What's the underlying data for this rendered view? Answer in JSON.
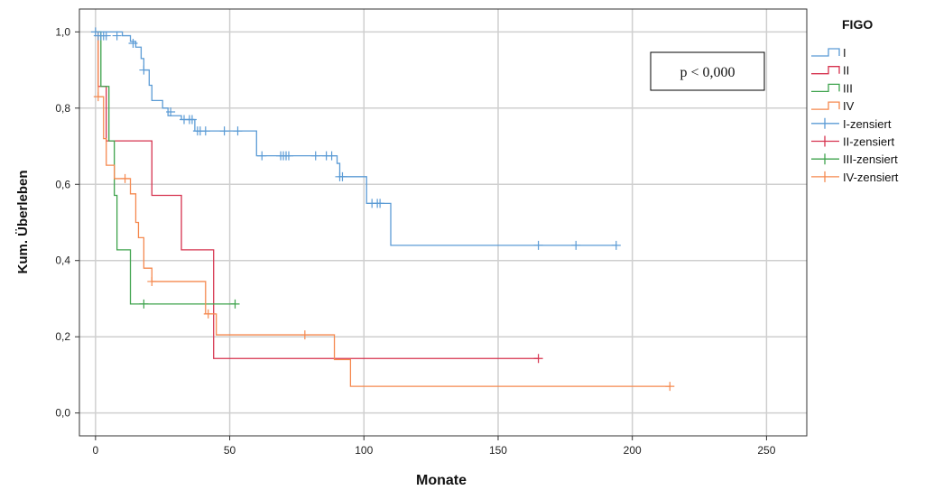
{
  "chart_data": {
    "type": "line",
    "title": "",
    "xlabel": "Monate",
    "ylabel": "Kum. Überleben",
    "xlim": [
      -6,
      265
    ],
    "ylim": [
      -0.06,
      1.06
    ],
    "x_ticks": [
      0,
      50,
      100,
      150,
      200,
      250
    ],
    "x_tick_labels": [
      "0",
      "50",
      "100",
      "150",
      "200",
      "250"
    ],
    "y_ticks": [
      0.0,
      0.2,
      0.4,
      0.6,
      0.8,
      1.0
    ],
    "y_tick_labels": [
      "0,0",
      "0,2",
      "0,4",
      "0,6",
      "0,8",
      "1,0"
    ],
    "grid": true,
    "legend_title": "FIGO",
    "legend_position": "right",
    "annotation": "p < 0,000",
    "series": [
      {
        "name": "I",
        "censored_name": "I-zensiert",
        "color": "#5b9bd5",
        "steps": [
          [
            0,
            1.0
          ],
          [
            10,
            0.99
          ],
          [
            13,
            0.975
          ],
          [
            15,
            0.96
          ],
          [
            17,
            0.93
          ],
          [
            18,
            0.9
          ],
          [
            20,
            0.86
          ],
          [
            21,
            0.82
          ],
          [
            25,
            0.8
          ],
          [
            27,
            0.78
          ],
          [
            32,
            0.77
          ],
          [
            37,
            0.74
          ],
          [
            60,
            0.675
          ],
          [
            90,
            0.655
          ],
          [
            91,
            0.62
          ],
          [
            101,
            0.55
          ],
          [
            110,
            0.44
          ],
          [
            194,
            0.44
          ]
        ],
        "censored": [
          [
            0,
            1.0
          ],
          [
            1,
            0.99
          ],
          [
            2,
            0.99
          ],
          [
            3,
            0.99
          ],
          [
            4,
            0.99
          ],
          [
            8,
            0.99
          ],
          [
            14,
            0.97
          ],
          [
            18,
            0.9
          ],
          [
            28,
            0.79
          ],
          [
            33,
            0.77
          ],
          [
            35,
            0.77
          ],
          [
            36,
            0.77
          ],
          [
            38,
            0.74
          ],
          [
            39,
            0.74
          ],
          [
            41,
            0.74
          ],
          [
            48,
            0.74
          ],
          [
            53,
            0.74
          ],
          [
            62,
            0.675
          ],
          [
            69,
            0.675
          ],
          [
            70,
            0.675
          ],
          [
            71,
            0.675
          ],
          [
            72,
            0.675
          ],
          [
            82,
            0.675
          ],
          [
            86,
            0.675
          ],
          [
            88,
            0.675
          ],
          [
            91,
            0.62
          ],
          [
            92,
            0.62
          ],
          [
            103,
            0.55
          ],
          [
            105,
            0.55
          ],
          [
            106,
            0.55
          ],
          [
            165,
            0.44
          ],
          [
            179,
            0.44
          ],
          [
            194,
            0.44
          ]
        ]
      },
      {
        "name": "II",
        "censored_name": "II-zensiert",
        "color": "#d6334f",
        "steps": [
          [
            0,
            1.0
          ],
          [
            1,
            0.857
          ],
          [
            4,
            0.714
          ],
          [
            21,
            0.571
          ],
          [
            32,
            0.428
          ],
          [
            44,
            0.143
          ],
          [
            165,
            0.143
          ]
        ],
        "censored": [
          [
            165,
            0.143
          ]
        ]
      },
      {
        "name": "III",
        "censored_name": "III-zensiert",
        "color": "#3fa34d",
        "steps": [
          [
            0,
            1.0
          ],
          [
            2,
            0.857
          ],
          [
            5,
            0.714
          ],
          [
            7,
            0.571
          ],
          [
            8,
            0.428
          ],
          [
            13,
            0.286
          ],
          [
            52,
            0.286
          ]
        ],
        "censored": [
          [
            18,
            0.286
          ],
          [
            52,
            0.286
          ]
        ]
      },
      {
        "name": "IV",
        "censored_name": "IV-zensiert",
        "color": "#f5894f",
        "steps": [
          [
            0,
            1.0
          ],
          [
            1,
            0.83
          ],
          [
            3,
            0.72
          ],
          [
            4,
            0.65
          ],
          [
            7,
            0.615
          ],
          [
            13,
            0.575
          ],
          [
            15,
            0.5
          ],
          [
            16,
            0.46
          ],
          [
            18,
            0.38
          ],
          [
            21,
            0.345
          ],
          [
            41,
            0.26
          ],
          [
            45,
            0.205
          ],
          [
            89,
            0.14
          ],
          [
            95,
            0.07
          ],
          [
            214,
            0.07
          ]
        ],
        "censored": [
          [
            1,
            0.83
          ],
          [
            11,
            0.615
          ],
          [
            21,
            0.345
          ],
          [
            42,
            0.26
          ],
          [
            78,
            0.205
          ],
          [
            214,
            0.07
          ]
        ]
      }
    ]
  }
}
